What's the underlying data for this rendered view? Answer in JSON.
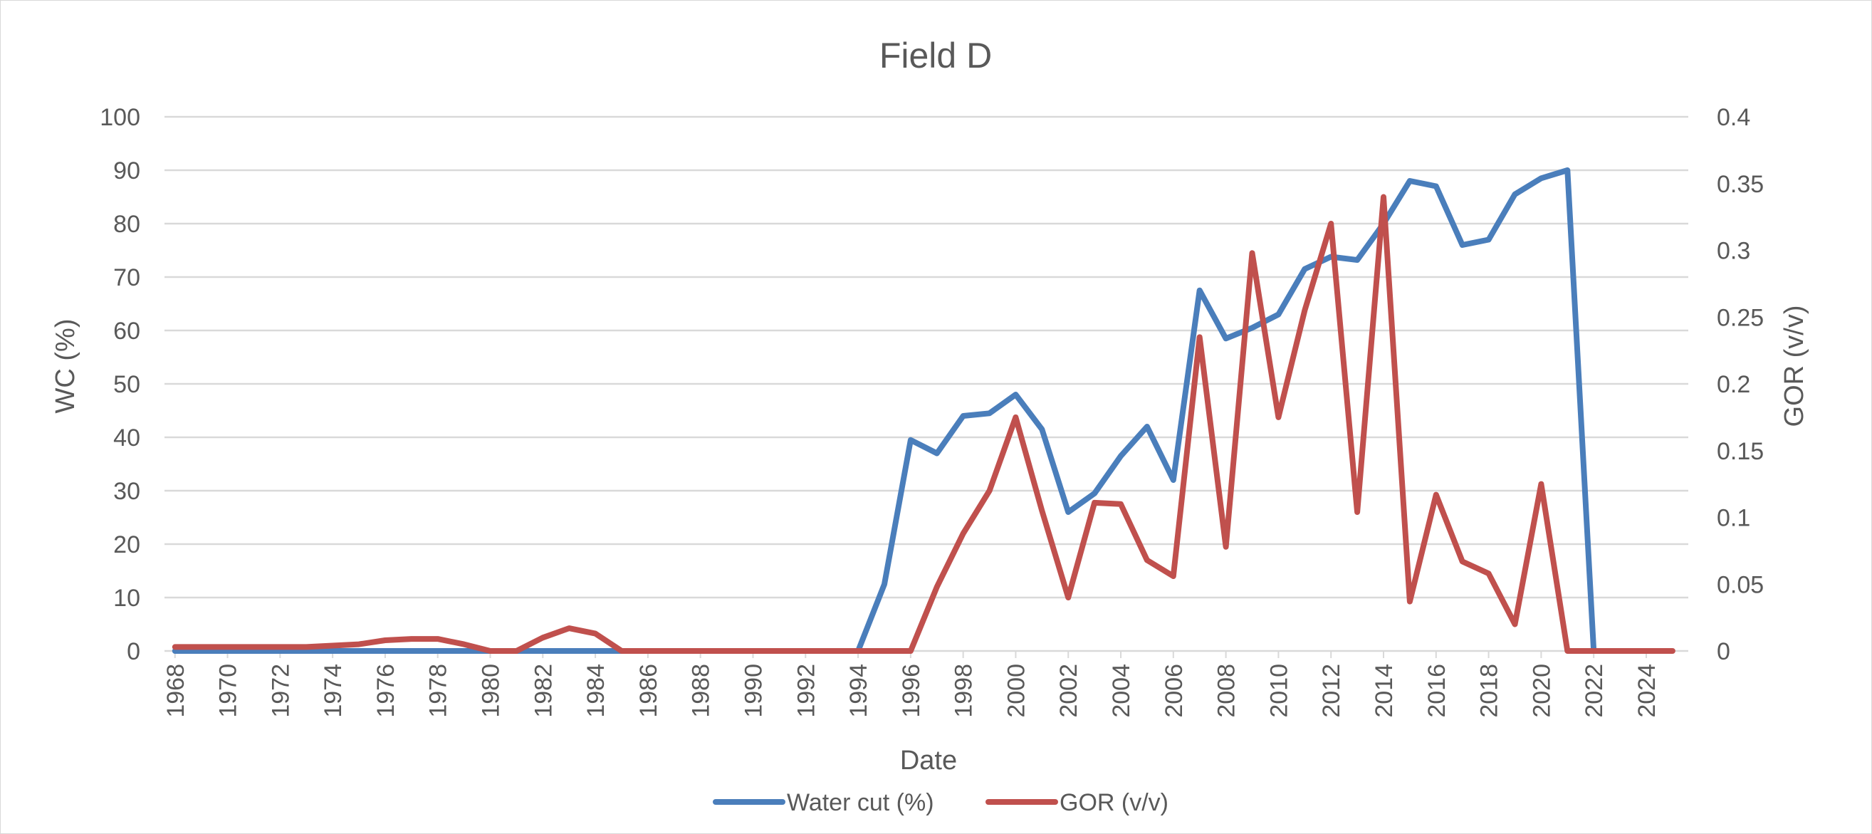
{
  "chart_data": {
    "type": "line",
    "title": "Field D",
    "xlabel": "Date",
    "ylabel": "WC (%)",
    "y2label": "GOR (v/v)",
    "ylim": [
      0,
      100
    ],
    "y2lim": [
      0,
      0.4
    ],
    "y_ticks": [
      0,
      10,
      20,
      30,
      40,
      50,
      60,
      70,
      80,
      90,
      100
    ],
    "y2_ticks": [
      0,
      0.05,
      0.1,
      0.15,
      0.2,
      0.25,
      0.3,
      0.35,
      0.4
    ],
    "x_ticks": [
      1968,
      1970,
      1972,
      1974,
      1976,
      1978,
      1980,
      1982,
      1984,
      1986,
      1988,
      1990,
      1992,
      1994,
      1996,
      1998,
      2000,
      2002,
      2004,
      2006,
      2008,
      2010,
      2012,
      2014,
      2016,
      2018,
      2020,
      2022,
      2024
    ],
    "grid": true,
    "legend_position": "bottom",
    "series": [
      {
        "name": "Water cut (%)",
        "axis": "left",
        "color": "#4a7ebb",
        "x": [
          1968,
          1970,
          1972,
          1974,
          1976,
          1978,
          1980,
          1982,
          1984,
          1986,
          1988,
          1990,
          1992,
          1993,
          1994,
          1995,
          1996,
          1997,
          1998,
          1999,
          2000,
          2001,
          2002,
          2003,
          2004,
          2005,
          2006,
          2007,
          2008,
          2009,
          2010,
          2011,
          2012,
          2013,
          2014,
          2015,
          2016,
          2017,
          2018,
          2019,
          2020,
          2021,
          2022
        ],
        "values": [
          0,
          0,
          0,
          0,
          0,
          0,
          0,
          0,
          0,
          0,
          0,
          0,
          0,
          0,
          0,
          12.5,
          39.5,
          37,
          44,
          44.5,
          48,
          41.5,
          26,
          29.5,
          36.5,
          42,
          32,
          67.5,
          58.5,
          60.5,
          63,
          71.5,
          73.8,
          73.2,
          80,
          88,
          87,
          76,
          77,
          85.5,
          88.5,
          90,
          0
        ]
      },
      {
        "name": "GOR (v/v)",
        "axis": "right",
        "color": "#c0504d",
        "x": [
          1968,
          1969,
          1970,
          1971,
          1972,
          1973,
          1974,
          1975,
          1976,
          1977,
          1978,
          1979,
          1980,
          1981,
          1982,
          1983,
          1984,
          1985,
          1986,
          1990,
          1994,
          1995,
          1996,
          1997,
          1998,
          1999,
          2000,
          2001,
          2002,
          2003,
          2004,
          2005,
          2006,
          2007,
          2008,
          2009,
          2010,
          2011,
          2012,
          2013,
          2014,
          2015,
          2016,
          2017,
          2018,
          2019,
          2020,
          2021,
          2022,
          2023,
          2024,
          2025
        ],
        "values": [
          0.003,
          0.003,
          0.003,
          0.003,
          0.003,
          0.003,
          0.004,
          0.005,
          0.008,
          0.009,
          0.009,
          0.005,
          0,
          0,
          0.01,
          0.017,
          0.013,
          0,
          0,
          0,
          0,
          0,
          0,
          0.048,
          0.088,
          0.12,
          0.175,
          0.105,
          0.04,
          0.111,
          0.11,
          0.068,
          0.056,
          0.235,
          0.078,
          0.298,
          0.175,
          0.255,
          0.32,
          0.104,
          0.34,
          0.037,
          0.117,
          0.067,
          0.058,
          0.02,
          0.125,
          0,
          0,
          0,
          0,
          0
        ]
      }
    ]
  }
}
